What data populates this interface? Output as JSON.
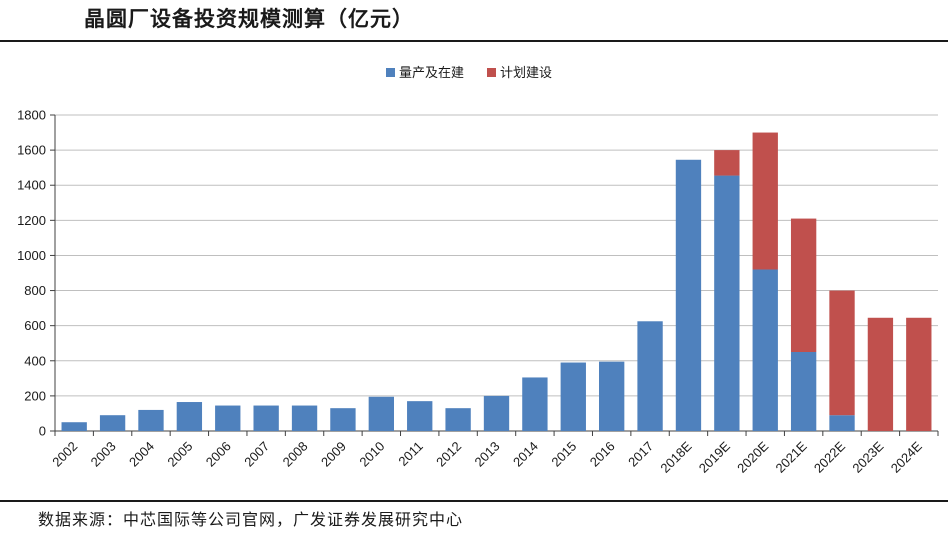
{
  "title": "晶圆厂设备投资规模测算（亿元）",
  "source": "数据来源：中芯国际等公司官网，广发证券发展研究中心",
  "chart_data": {
    "type": "bar",
    "stacked": true,
    "categories": [
      "2002",
      "2003",
      "2004",
      "2005",
      "2006",
      "2007",
      "2008",
      "2009",
      "2010",
      "2011",
      "2012",
      "2013",
      "2014",
      "2015",
      "2016",
      "2017",
      "2018E",
      "2019E",
      "2020E",
      "2021E",
      "2022E",
      "2023E",
      "2024E"
    ],
    "series": [
      {
        "name": "量产及在建",
        "color": "#4f81bd",
        "values": [
          50,
          90,
          120,
          165,
          145,
          145,
          145,
          130,
          195,
          170,
          130,
          200,
          305,
          390,
          395,
          625,
          1545,
          1455,
          920,
          450,
          90,
          0,
          0
        ]
      },
      {
        "name": "计划建设",
        "color": "#c0504d",
        "values": [
          0,
          0,
          0,
          0,
          0,
          0,
          0,
          0,
          0,
          0,
          0,
          0,
          0,
          0,
          0,
          0,
          0,
          145,
          780,
          760,
          710,
          645,
          645
        ]
      }
    ],
    "ylim": [
      0,
      1800
    ],
    "yticks": [
      0,
      200,
      400,
      600,
      800,
      1000,
      1200,
      1400,
      1600,
      1800
    ],
    "grid": true,
    "legend": "top-center"
  }
}
